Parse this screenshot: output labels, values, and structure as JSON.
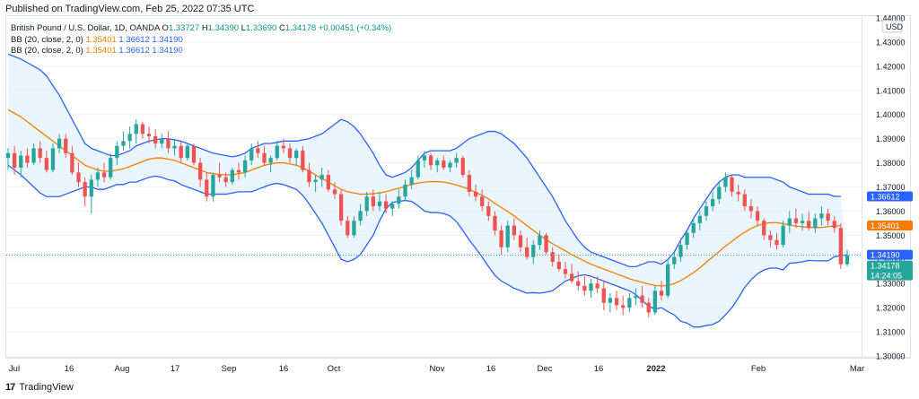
{
  "header": {
    "published": "Published on TradingView.com, Feb 25, 2022 07:35 UTC"
  },
  "legend": {
    "title": "British Pound / U.S. Dollar, 1D, OANDA",
    "ohlc": {
      "o_label": "O",
      "o": "1.33727",
      "h_label": "H",
      "h": "1.34390",
      "l_label": "L",
      "l": "1.33690",
      "c_label": "C",
      "c": "1.34178",
      "change": "+0.00451 (+0.34%)"
    },
    "indicators": [
      {
        "name": "BB (20, close, 2, 0)",
        "basis": "1.35401",
        "upper": "1.36612",
        "lower": "1.34190"
      },
      {
        "name": "BB (20, close, 2, 0)",
        "basis": "1.35401",
        "upper": "1.36612",
        "lower": "1.34190"
      }
    ]
  },
  "footer": {
    "brand": "TradingView",
    "logo_text": "17"
  },
  "colors": {
    "up": "#26a69a",
    "down": "#ef5350",
    "basis": "#f57c00",
    "band": "#2962ff",
    "fill": "#e3f2fd",
    "price_line": "#26a69a"
  },
  "chart_data": {
    "type": "candlestick",
    "title": "British Pound / U.S. Dollar, 1D, OANDA",
    "currency": "USD",
    "ylim": [
      1.3,
      1.44
    ],
    "yticks": [
      "1.30000",
      "1.31000",
      "1.32000",
      "1.33000",
      "1.34000",
      "1.35000",
      "1.36000",
      "1.37000",
      "1.38000",
      "1.39000",
      "1.40000",
      "1.41000",
      "1.42000",
      "1.43000",
      "1.44000"
    ],
    "xticks": [
      {
        "label": "Jul",
        "x": 0
      },
      {
        "label": "16",
        "x": 11
      },
      {
        "label": "Aug",
        "x": 22
      },
      {
        "label": "17",
        "x": 33
      },
      {
        "label": "Sep",
        "x": 44
      },
      {
        "label": "16",
        "x": 55
      },
      {
        "label": "Oct",
        "x": 65
      },
      {
        "label": "Nov",
        "x": 87
      },
      {
        "label": "16",
        "x": 98
      },
      {
        "label": "Dec",
        "x": 109
      },
      {
        "label": "16",
        "x": 120
      },
      {
        "label": "2022",
        "x": 131
      },
      {
        "label": "Feb",
        "x": 152
      },
      {
        "label": "Mar",
        "x": 172
      }
    ],
    "price_labels": [
      {
        "value": 1.36612,
        "text": "1.36612",
        "color": "#2962ff"
      },
      {
        "value": 1.35401,
        "text": "1.35401",
        "color": "#f57c00"
      },
      {
        "value": 1.3419,
        "text": "1.34190",
        "color": "#2962ff"
      },
      {
        "value": 1.34178,
        "text": "1.34178",
        "sub": "14:24:05",
        "color": "#26a69a"
      }
    ],
    "candles": [
      [
        1.382,
        1.386,
        1.377,
        1.384
      ],
      [
        1.384,
        1.387,
        1.375,
        1.378
      ],
      [
        1.378,
        1.385,
        1.374,
        1.383
      ],
      [
        1.383,
        1.386,
        1.378,
        1.38
      ],
      [
        1.38,
        1.388,
        1.379,
        1.386
      ],
      [
        1.386,
        1.389,
        1.38,
        1.382
      ],
      [
        1.382,
        1.385,
        1.376,
        1.377
      ],
      [
        1.377,
        1.388,
        1.376,
        1.386
      ],
      [
        1.386,
        1.392,
        1.384,
        1.39
      ],
      [
        1.39,
        1.392,
        1.382,
        1.384
      ],
      [
        1.384,
        1.387,
        1.375,
        1.376
      ],
      [
        1.376,
        1.38,
        1.37,
        1.372
      ],
      [
        1.372,
        1.374,
        1.362,
        1.366
      ],
      [
        1.366,
        1.375,
        1.359,
        1.373
      ],
      [
        1.373,
        1.378,
        1.37,
        1.376
      ],
      [
        1.376,
        1.38,
        1.372,
        1.374
      ],
      [
        1.374,
        1.384,
        1.373,
        1.382
      ],
      [
        1.382,
        1.389,
        1.379,
        1.387
      ],
      [
        1.387,
        1.393,
        1.385,
        1.389
      ],
      [
        1.389,
        1.395,
        1.386,
        1.392
      ],
      [
        1.392,
        1.398,
        1.388,
        1.396
      ],
      [
        1.396,
        1.397,
        1.39,
        1.392
      ],
      [
        1.392,
        1.395,
        1.388,
        1.391
      ],
      [
        1.391,
        1.394,
        1.386,
        1.388
      ],
      [
        1.388,
        1.392,
        1.386,
        1.39
      ],
      [
        1.39,
        1.393,
        1.384,
        1.386
      ],
      [
        1.386,
        1.39,
        1.383,
        1.387
      ],
      [
        1.387,
        1.389,
        1.38,
        1.382
      ],
      [
        1.382,
        1.388,
        1.381,
        1.387
      ],
      [
        1.387,
        1.388,
        1.379,
        1.38
      ],
      [
        1.38,
        1.382,
        1.37,
        1.373
      ],
      [
        1.373,
        1.376,
        1.364,
        1.366
      ],
      [
        1.366,
        1.376,
        1.364,
        1.375
      ],
      [
        1.375,
        1.38,
        1.372,
        1.374
      ],
      [
        1.374,
        1.376,
        1.37,
        1.372
      ],
      [
        1.372,
        1.378,
        1.371,
        1.377
      ],
      [
        1.377,
        1.38,
        1.373,
        1.376
      ],
      [
        1.376,
        1.383,
        1.374,
        1.381
      ],
      [
        1.381,
        1.388,
        1.379,
        1.386
      ],
      [
        1.386,
        1.389,
        1.382,
        1.384
      ],
      [
        1.384,
        1.387,
        1.379,
        1.38
      ],
      [
        1.38,
        1.383,
        1.376,
        1.382
      ],
      [
        1.382,
        1.389,
        1.381,
        1.387
      ],
      [
        1.387,
        1.39,
        1.384,
        1.386
      ],
      [
        1.386,
        1.388,
        1.38,
        1.382
      ],
      [
        1.382,
        1.386,
        1.379,
        1.385
      ],
      [
        1.385,
        1.387,
        1.376,
        1.377
      ],
      [
        1.377,
        1.38,
        1.37,
        1.372
      ],
      [
        1.372,
        1.375,
        1.368,
        1.373
      ],
      [
        1.373,
        1.378,
        1.37,
        1.375
      ],
      [
        1.375,
        1.377,
        1.368,
        1.369
      ],
      [
        1.369,
        1.372,
        1.365,
        1.367
      ],
      [
        1.367,
        1.369,
        1.354,
        1.356
      ],
      [
        1.356,
        1.358,
        1.349,
        1.35
      ],
      [
        1.35,
        1.358,
        1.349,
        1.356
      ],
      [
        1.356,
        1.363,
        1.354,
        1.36
      ],
      [
        1.36,
        1.368,
        1.358,
        1.366
      ],
      [
        1.366,
        1.369,
        1.36,
        1.362
      ],
      [
        1.362,
        1.368,
        1.36,
        1.364
      ],
      [
        1.364,
        1.367,
        1.359,
        1.361
      ],
      [
        1.361,
        1.364,
        1.358,
        1.363
      ],
      [
        1.363,
        1.369,
        1.361,
        1.366
      ],
      [
        1.366,
        1.373,
        1.364,
        1.371
      ],
      [
        1.371,
        1.377,
        1.369,
        1.374
      ],
      [
        1.374,
        1.383,
        1.373,
        1.381
      ],
      [
        1.381,
        1.385,
        1.378,
        1.383
      ],
      [
        1.383,
        1.384,
        1.377,
        1.379
      ],
      [
        1.379,
        1.382,
        1.376,
        1.381
      ],
      [
        1.381,
        1.383,
        1.377,
        1.378
      ],
      [
        1.378,
        1.381,
        1.376,
        1.38
      ],
      [
        1.38,
        1.384,
        1.378,
        1.382
      ],
      [
        1.382,
        1.383,
        1.374,
        1.375
      ],
      [
        1.375,
        1.377,
        1.366,
        1.368
      ],
      [
        1.368,
        1.371,
        1.364,
        1.366
      ],
      [
        1.366,
        1.369,
        1.36,
        1.362
      ],
      [
        1.362,
        1.364,
        1.356,
        1.358
      ],
      [
        1.358,
        1.36,
        1.35,
        1.352
      ],
      [
        1.352,
        1.354,
        1.342,
        1.345
      ],
      [
        1.345,
        1.356,
        1.343,
        1.354
      ],
      [
        1.354,
        1.357,
        1.348,
        1.35
      ],
      [
        1.35,
        1.352,
        1.343,
        1.345
      ],
      [
        1.345,
        1.349,
        1.34,
        1.341
      ],
      [
        1.341,
        1.348,
        1.338,
        1.346
      ],
      [
        1.346,
        1.352,
        1.344,
        1.35
      ],
      [
        1.35,
        1.351,
        1.342,
        1.343
      ],
      [
        1.343,
        1.345,
        1.337,
        1.339
      ],
      [
        1.339,
        1.342,
        1.335,
        1.336
      ],
      [
        1.336,
        1.339,
        1.332,
        1.334
      ],
      [
        1.334,
        1.338,
        1.33,
        1.331
      ],
      [
        1.331,
        1.335,
        1.327,
        1.329
      ],
      [
        1.329,
        1.333,
        1.325,
        1.327
      ],
      [
        1.327,
        1.332,
        1.324,
        1.33
      ],
      [
        1.33,
        1.333,
        1.326,
        1.328
      ],
      [
        1.328,
        1.331,
        1.319,
        1.322
      ],
      [
        1.322,
        1.326,
        1.318,
        1.324
      ],
      [
        1.324,
        1.327,
        1.319,
        1.321
      ],
      [
        1.321,
        1.325,
        1.317,
        1.32
      ],
      [
        1.32,
        1.326,
        1.318,
        1.324
      ],
      [
        1.324,
        1.328,
        1.321,
        1.325
      ],
      [
        1.325,
        1.329,
        1.32,
        1.322
      ],
      [
        1.322,
        1.324,
        1.316,
        1.318
      ],
      [
        1.318,
        1.329,
        1.317,
        1.327
      ],
      [
        1.327,
        1.331,
        1.323,
        1.325
      ],
      [
        1.325,
        1.34,
        1.324,
        1.338
      ],
      [
        1.338,
        1.343,
        1.336,
        1.341
      ],
      [
        1.341,
        1.348,
        1.339,
        1.346
      ],
      [
        1.346,
        1.352,
        1.344,
        1.351
      ],
      [
        1.351,
        1.357,
        1.349,
        1.355
      ],
      [
        1.355,
        1.36,
        1.352,
        1.358
      ],
      [
        1.358,
        1.364,
        1.356,
        1.362
      ],
      [
        1.362,
        1.368,
        1.36,
        1.365
      ],
      [
        1.365,
        1.372,
        1.363,
        1.37
      ],
      [
        1.37,
        1.376,
        1.368,
        1.374
      ],
      [
        1.374,
        1.375,
        1.366,
        1.368
      ],
      [
        1.368,
        1.371,
        1.364,
        1.367
      ],
      [
        1.367,
        1.369,
        1.36,
        1.362
      ],
      [
        1.362,
        1.365,
        1.357,
        1.36
      ],
      [
        1.36,
        1.362,
        1.354,
        1.356
      ],
      [
        1.356,
        1.357,
        1.348,
        1.35
      ],
      [
        1.35,
        1.352,
        1.345,
        1.348
      ],
      [
        1.348,
        1.351,
        1.344,
        1.346
      ],
      [
        1.346,
        1.356,
        1.345,
        1.354
      ],
      [
        1.354,
        1.36,
        1.351,
        1.357
      ],
      [
        1.357,
        1.361,
        1.353,
        1.355
      ],
      [
        1.355,
        1.359,
        1.352,
        1.356
      ],
      [
        1.356,
        1.36,
        1.352,
        1.353
      ],
      [
        1.353,
        1.359,
        1.351,
        1.357
      ],
      [
        1.357,
        1.362,
        1.354,
        1.359
      ],
      [
        1.359,
        1.361,
        1.354,
        1.356
      ],
      [
        1.356,
        1.358,
        1.351,
        1.353
      ],
      [
        1.353,
        1.355,
        1.336,
        1.338
      ],
      [
        1.338,
        1.344,
        1.337,
        1.3418
      ]
    ],
    "bb_upper": [
      1.425,
      1.424,
      1.423,
      1.4215,
      1.42,
      1.4185,
      1.416,
      1.412,
      1.408,
      1.403,
      1.398,
      1.393,
      1.388,
      1.386,
      1.385,
      1.384,
      1.383,
      1.383,
      1.384,
      1.385,
      1.387,
      1.388,
      1.389,
      1.3895,
      1.39,
      1.39,
      1.3895,
      1.389,
      1.388,
      1.387,
      1.386,
      1.385,
      1.384,
      1.3835,
      1.383,
      1.3825,
      1.383,
      1.384,
      1.386,
      1.387,
      1.388,
      1.388,
      1.3885,
      1.389,
      1.389,
      1.389,
      1.3895,
      1.39,
      1.391,
      1.392,
      1.394,
      1.396,
      1.398,
      1.397,
      1.395,
      1.392,
      1.388,
      1.384,
      1.379,
      1.375,
      1.374,
      1.375,
      1.376,
      1.378,
      1.381,
      1.384,
      1.385,
      1.385,
      1.385,
      1.385,
      1.386,
      1.388,
      1.39,
      1.391,
      1.392,
      1.393,
      1.393,
      1.392,
      1.39,
      1.388,
      1.385,
      1.382,
      1.378,
      1.374,
      1.37,
      1.366,
      1.361,
      1.356,
      1.352,
      1.348,
      1.345,
      1.343,
      1.342,
      1.341,
      1.34,
      1.339,
      1.338,
      1.337,
      1.337,
      1.338,
      1.339,
      1.339,
      1.338,
      1.34,
      1.343,
      1.348,
      1.352,
      1.357,
      1.361,
      1.365,
      1.369,
      1.372,
      1.374,
      1.375,
      1.375,
      1.374,
      1.374,
      1.374,
      1.374,
      1.374,
      1.373,
      1.372,
      1.37,
      1.369,
      1.368,
      1.367,
      1.367,
      1.367,
      1.367,
      1.3661,
      1.3661
    ],
    "bb_basis": [
      1.402,
      1.4005,
      1.399,
      1.397,
      1.395,
      1.393,
      1.391,
      1.389,
      1.387,
      1.385,
      1.383,
      1.381,
      1.379,
      1.378,
      1.377,
      1.3765,
      1.3765,
      1.377,
      1.3775,
      1.3785,
      1.3795,
      1.3805,
      1.3815,
      1.382,
      1.382,
      1.3815,
      1.381,
      1.38,
      1.379,
      1.378,
      1.377,
      1.376,
      1.3755,
      1.3752,
      1.375,
      1.375,
      1.3755,
      1.376,
      1.377,
      1.378,
      1.379,
      1.3795,
      1.38,
      1.38,
      1.3795,
      1.379,
      1.378,
      1.3765,
      1.375,
      1.3735,
      1.372,
      1.3705,
      1.369,
      1.368,
      1.3675,
      1.367,
      1.367,
      1.3672,
      1.3675,
      1.368,
      1.3688,
      1.3695,
      1.3702,
      1.371,
      1.3716,
      1.372,
      1.3722,
      1.3722,
      1.372,
      1.3715,
      1.3708,
      1.37,
      1.369,
      1.3678,
      1.3665,
      1.365,
      1.3632,
      1.3615,
      1.3598,
      1.358,
      1.356,
      1.354,
      1.352,
      1.35,
      1.3482,
      1.3465,
      1.345,
      1.3435,
      1.342,
      1.3406,
      1.3393,
      1.338,
      1.337,
      1.336,
      1.335,
      1.334,
      1.333,
      1.332,
      1.3312,
      1.3305,
      1.3298,
      1.3292,
      1.329,
      1.3292,
      1.33,
      1.3312,
      1.3328,
      1.3345,
      1.3365,
      1.3388,
      1.341,
      1.3432,
      1.3455,
      1.3475,
      1.3495,
      1.3512,
      1.3528,
      1.354,
      1.3548,
      1.3552,
      1.3552,
      1.3548,
      1.3542,
      1.3538,
      1.3535,
      1.3533,
      1.3532,
      1.3532,
      1.3536,
      1.3538,
      1.354
    ],
    "bb_lower": [
      1.379,
      1.377,
      1.375,
      1.3725,
      1.37,
      1.3675,
      1.366,
      1.366,
      1.366,
      1.367,
      1.368,
      1.369,
      1.37,
      1.37,
      1.369,
      1.369,
      1.37,
      1.371,
      1.371,
      1.372,
      1.372,
      1.373,
      1.374,
      1.3745,
      1.374,
      1.373,
      1.3725,
      1.371,
      1.37,
      1.369,
      1.368,
      1.367,
      1.367,
      1.367,
      1.367,
      1.3675,
      1.368,
      1.368,
      1.368,
      1.369,
      1.37,
      1.371,
      1.3715,
      1.371,
      1.37,
      1.369,
      1.3665,
      1.363,
      1.359,
      1.355,
      1.35,
      1.345,
      1.34,
      1.339,
      1.34,
      1.342,
      1.346,
      1.35,
      1.356,
      1.361,
      1.3636,
      1.364,
      1.3644,
      1.364,
      1.3622,
      1.36,
      1.3594,
      1.3594,
      1.359,
      1.358,
      1.3556,
      1.352,
      1.348,
      1.3446,
      1.341,
      1.337,
      1.3334,
      1.331,
      1.3296,
      1.328,
      1.327,
      1.326,
      1.3262,
      1.326,
      1.3264,
      1.327,
      1.329,
      1.331,
      1.332,
      1.3332,
      1.3336,
      1.333,
      1.332,
      1.331,
      1.33,
      1.329,
      1.328,
      1.327,
      1.3254,
      1.323,
      1.3206,
      1.3194,
      1.32,
      1.3184,
      1.317,
      1.3144,
      1.3136,
      1.312,
      1.312,
      1.3126,
      1.313,
      1.3144,
      1.317,
      1.32,
      1.324,
      1.3284,
      1.3316,
      1.334,
      1.3356,
      1.3364,
      1.3364,
      1.3356,
      1.3384,
      1.3386,
      1.339,
      1.3396,
      1.3394,
      1.3394,
      1.3394,
      1.3411,
      1.3415,
      1.3419
    ]
  }
}
